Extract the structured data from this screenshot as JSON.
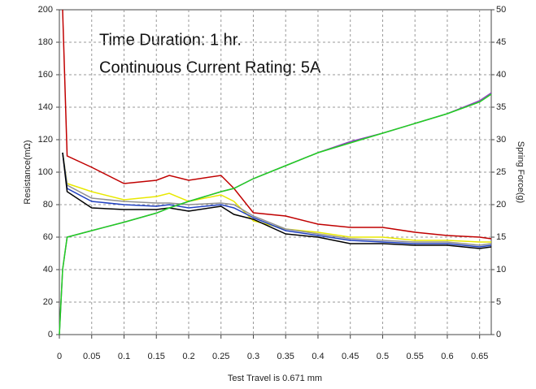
{
  "chart_data": {
    "type": "line",
    "annotations": [
      "Time Duration: 1 hr.",
      "Continuous Current Rating: 5A"
    ],
    "xlabel": "Test Travel is 0.671 mm",
    "ylabel": "Resistance(mΩ)",
    "y2label": "Spring Force(g)",
    "x": [
      0,
      0.005,
      0.012,
      0.05,
      0.1,
      0.15,
      0.17,
      0.2,
      0.25,
      0.27,
      0.3,
      0.35,
      0.4,
      0.45,
      0.5,
      0.55,
      0.6,
      0.65,
      0.668
    ],
    "series": [
      {
        "color": "#c00000",
        "values": [
          null,
          200,
          110,
          103,
          93,
          95,
          98,
          95,
          98,
          90,
          75,
          73,
          68,
          66,
          66,
          63,
          61,
          60,
          59
        ]
      },
      {
        "color": "#e8e800",
        "values": [
          null,
          112,
          93,
          88,
          83,
          85,
          87,
          82,
          86,
          82,
          70,
          65,
          63,
          60,
          60,
          58,
          58,
          57,
          57
        ]
      },
      {
        "color": "#909090",
        "values": [
          null,
          112,
          92,
          84,
          82,
          81,
          81,
          80,
          81,
          80,
          73,
          65,
          62,
          59,
          58,
          57,
          57,
          55,
          56
        ]
      },
      {
        "color": "#2040c0",
        "values": [
          null,
          112,
          90,
          82,
          80,
          79,
          80,
          78,
          80,
          78,
          72,
          64,
          61,
          58,
          57,
          56,
          56,
          54,
          55
        ]
      },
      {
        "color": "#000000",
        "values": [
          null,
          112,
          88,
          78,
          77,
          77,
          78,
          76,
          79,
          74,
          71,
          62,
          60,
          56,
          56,
          55,
          55,
          53,
          54
        ]
      },
      {
        "color": "#9040c0",
        "axis": "y2",
        "values": [
          0,
          10,
          15,
          16,
          17.3,
          18.7,
          19.5,
          20.5,
          22,
          22.5,
          24,
          26,
          28,
          29.7,
          31,
          32.5,
          34,
          36,
          37.2
        ]
      },
      {
        "color": "#20d020",
        "axis": "y2",
        "values": [
          0,
          10,
          15,
          16,
          17.3,
          18.7,
          19.5,
          20.5,
          22,
          22.5,
          24,
          26,
          28,
          29.5,
          31,
          32.5,
          34,
          35.8,
          37
        ]
      }
    ],
    "xlim": [
      0,
      0.668
    ],
    "xticks": [
      0,
      0.05,
      0.1,
      0.15,
      0.2,
      0.25,
      0.3,
      0.35,
      0.4,
      0.45,
      0.5,
      0.55,
      0.6,
      0.65
    ],
    "ylim": [
      0,
      200
    ],
    "yticks": [
      0,
      20,
      40,
      60,
      80,
      100,
      120,
      140,
      160,
      180,
      200
    ],
    "y2lim": [
      0,
      50
    ],
    "y2ticks": [
      0,
      5,
      10,
      15,
      20,
      25,
      30,
      35,
      40,
      45,
      50
    ],
    "grid": true
  }
}
